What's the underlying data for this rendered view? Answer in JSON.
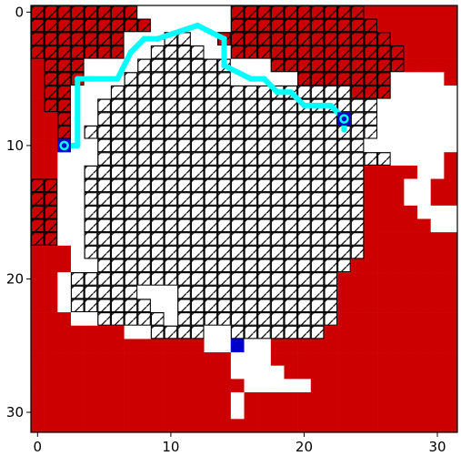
{
  "chart_data": {
    "type": "heatmap",
    "title": "",
    "xlabel": "",
    "ylabel": "",
    "xlim": [
      -0.5,
      31.5
    ],
    "ylim": [
      31.5,
      -0.5
    ],
    "xticks": [
      0,
      10,
      20,
      30
    ],
    "yticks": [
      0,
      10,
      20,
      30
    ],
    "xtick_labels": [
      "0",
      "10",
      "20",
      "30"
    ],
    "ytick_labels": [
      "0",
      "10",
      "20",
      "30"
    ],
    "grid_size": [
      32,
      32
    ],
    "colors": {
      "obstacle": "#cc0000",
      "free": "#ffffff",
      "visited_hatch": "#000000",
      "path": "#00ffff",
      "marker": "#0000cc"
    },
    "cell_legend": {
      "R": "red obstacle",
      "D": "red hatched (visited obstacle)",
      "W": "white hatched (visited free)",
      ".": "white free",
      "B": "blue marker"
    },
    "grid": [
      "DDDDDDDD.......DDDDDDDDDDRRRRRRR",
      "DDDDDDDDD......DDDDDDDDDDDRRRRRR",
      "DDDDDDD...WW..DDDDDDDDDDDDDRRRRR",
      "DDDDDDD..WWWW..DDDDDDDDDDDDDRRRR",
      "RDDD....WWWWWWW...DDDDDDDDDDRRRR",
      "RDDD...WWWWWWWW.....DDDDDDD....R",
      "RDD...WWWWWWWWWWWWWWWWWWDDD.....",
      "RDD..WWWWWWWWWWWWWWWWWWWWW......",
      "RRD..WWWWWWWWWWWWWWWWWWWWW......",
      "RRD.WWWWWWWWWWWWWWWWWWWWWW......",
      "RRB..WWWWWWWWWWWWWWWWWWWW.......",
      "RR...WWWWWWWWWWWWWWWWWWWWWW....R",
      "RR..WWWWWWWWWWWWWWWWWWWWWRRRR..R",
      "DD..WWWWWWWWWWWWWWWWWWWWWRRR..RR",
      "DD..WWWWWWWWWWWWWWWWWWWWWRRR..RR",
      "DD..WWWWWWWWWWWWWWWWWWWWWRRRR...",
      "DD..WWWWWWWWWWWWWWWWWWWWWRRRRR..",
      "DD..WWWWWWWWWWWWWWWWWWWWWRRRRRRR",
      "RRR.WWWWWWWWWWWWWWWWWWWWWRRRRRRR",
      "RRR..WWWWWWWWWWWWWWWWWWWRRRRRRRR",
      "RR.WWWWWWWWWWWWWWWWWWWWRRRRRRRRR",
      "RR.WWWWW...WWWWWWWWWWWWRRRRRRRRR",
      "RR.WWWWWW..WWWWWWWWWWWWRRRRRRRRR",
      "RRR..WWWWW.WWWWWWWWWWWWRRRRRRRRR",
      "RRRRRRR..WWWW..WWWWWWWRRRRRRRRRR",
      "RRRRRRRRRRRRR..B..RRRRRRRRRRRRRR",
      "RRRRRRRRRRRRRRR...RRRRRRRRRRRRRR",
      "RRRRRRRRRRRRRRR....RRRRRRRRRRRRR",
      "RRRRRRRRRRRRRRRR.....RRRRRRRRRRR",
      "RRRRRRRRRRRRRRR.RRRRRRRRRRRRRRRR",
      "RRRRRRRRRRRRRRR.RRRRRRRRRRRRRRRR",
      "RRRRRRRRRRRRRRRRRRRRRRRRRRRRRRRR"
    ],
    "path": [
      [
        23,
        8.8
      ],
      [
        23,
        8
      ],
      [
        22,
        7
      ],
      [
        20,
        7
      ],
      [
        19,
        6
      ],
      [
        18,
        6
      ],
      [
        17,
        5
      ],
      [
        16,
        5
      ],
      [
        14,
        4
      ],
      [
        14,
        2
      ],
      [
        12,
        1
      ],
      [
        9,
        2
      ],
      [
        8,
        2
      ],
      [
        7,
        3
      ],
      [
        6,
        5
      ],
      [
        4,
        5
      ],
      [
        3,
        5
      ],
      [
        3,
        8
      ],
      [
        3,
        10
      ],
      [
        2,
        10
      ]
    ],
    "path_endpoints": [
      [
        2,
        10
      ],
      [
        23,
        8
      ]
    ],
    "marker_points": [
      [
        15,
        25
      ]
    ]
  }
}
